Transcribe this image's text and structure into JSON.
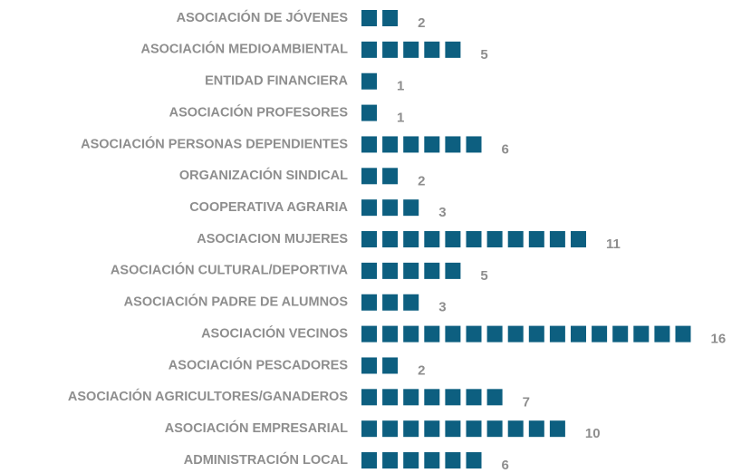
{
  "chart_data": {
    "type": "pictogram",
    "categories": [
      "ASOCIACIÓN DE JÓVENES",
      "ASOCIACIÓN MEDIOAMBIENTAL",
      "ENTIDAD FINANCIERA",
      "ASOCIACIÓN PROFESORES",
      "ASOCIACIÓN PERSONAS DEPENDIENTES",
      "ORGANIZACIÓN SINDICAL",
      "COOPERATIVA AGRARIA",
      "ASOCIACION MUJERES",
      "ASOCIACIÓN CULTURAL/DEPORTIVA",
      "ASOCIACIÓN PADRE DE ALUMNOS",
      "ASOCIACIÓN VECINOS",
      "ASOCIACIÓN PESCADORES",
      "ASOCIACIÓN AGRICULTORES/GANADEROS",
      "ASOCIACIÓN EMPRESARIAL",
      "ADMINISTRACIÓN LOCAL"
    ],
    "values": [
      2,
      5,
      1,
      1,
      6,
      2,
      3,
      11,
      5,
      3,
      16,
      2,
      7,
      10,
      6
    ],
    "color": "#0d5f80"
  }
}
